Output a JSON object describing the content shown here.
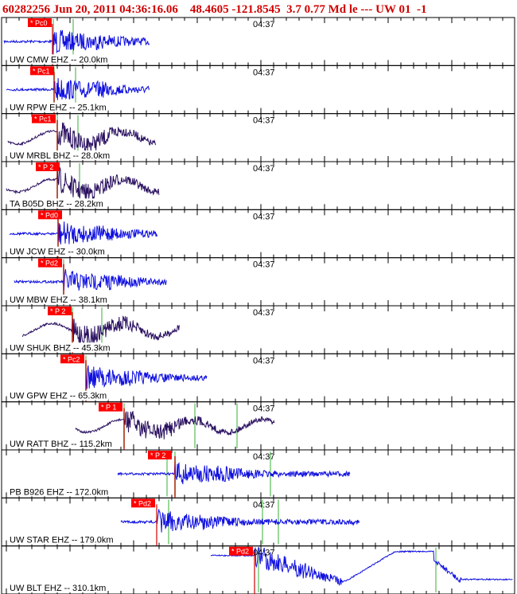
{
  "header": {
    "title": "60282256 Jun 20, 2011 04:36:16.06    48.4605 -121.8545  3.7 0.77 Md le --- UW 01  -1"
  },
  "traces": [
    {
      "station": "UW CMW EHZ -- 20.0km",
      "time": "04:37",
      "pick": "* Pc0"
    },
    {
      "station": "UW RPW EHZ -- 25.1km",
      "time": "04:37",
      "pick": "* Pc1"
    },
    {
      "station": "UW MRBL BHZ -- 28.0km",
      "time": "04:37",
      "pick": "* Pc1"
    },
    {
      "station": "TA B05D BHZ -- 28.2km",
      "time": "04:37",
      "pick": "* P 2"
    },
    {
      "station": "UW JCW EHZ -- 30.0km",
      "time": "04:37",
      "pick": "* Pd0"
    },
    {
      "station": "UW MBW EHZ -- 38.1km",
      "time": "04:37",
      "pick": "* Pd2"
    },
    {
      "station": "UW SHUK BHZ -- 45.3km",
      "time": "04:37",
      "pick": "* P 2"
    },
    {
      "station": "UW GPW EHZ -- 65.3km",
      "time": "04:37",
      "pick": "* Pc2"
    },
    {
      "station": "UW RATT BHZ -- 115.2km",
      "time": "04:37",
      "pick": "* P 1"
    },
    {
      "station": "PB B926 EHZ -- 172.0km",
      "time": "04:37",
      "pick": "* P 2"
    },
    {
      "station": "UW STAR EHZ -- 179.0km",
      "time": "04:37",
      "pick": "* Pd2"
    },
    {
      "station": "UW BLT EHZ -- 310.1km",
      "time": "04:37",
      "pick": "* Pd2"
    }
  ]
}
